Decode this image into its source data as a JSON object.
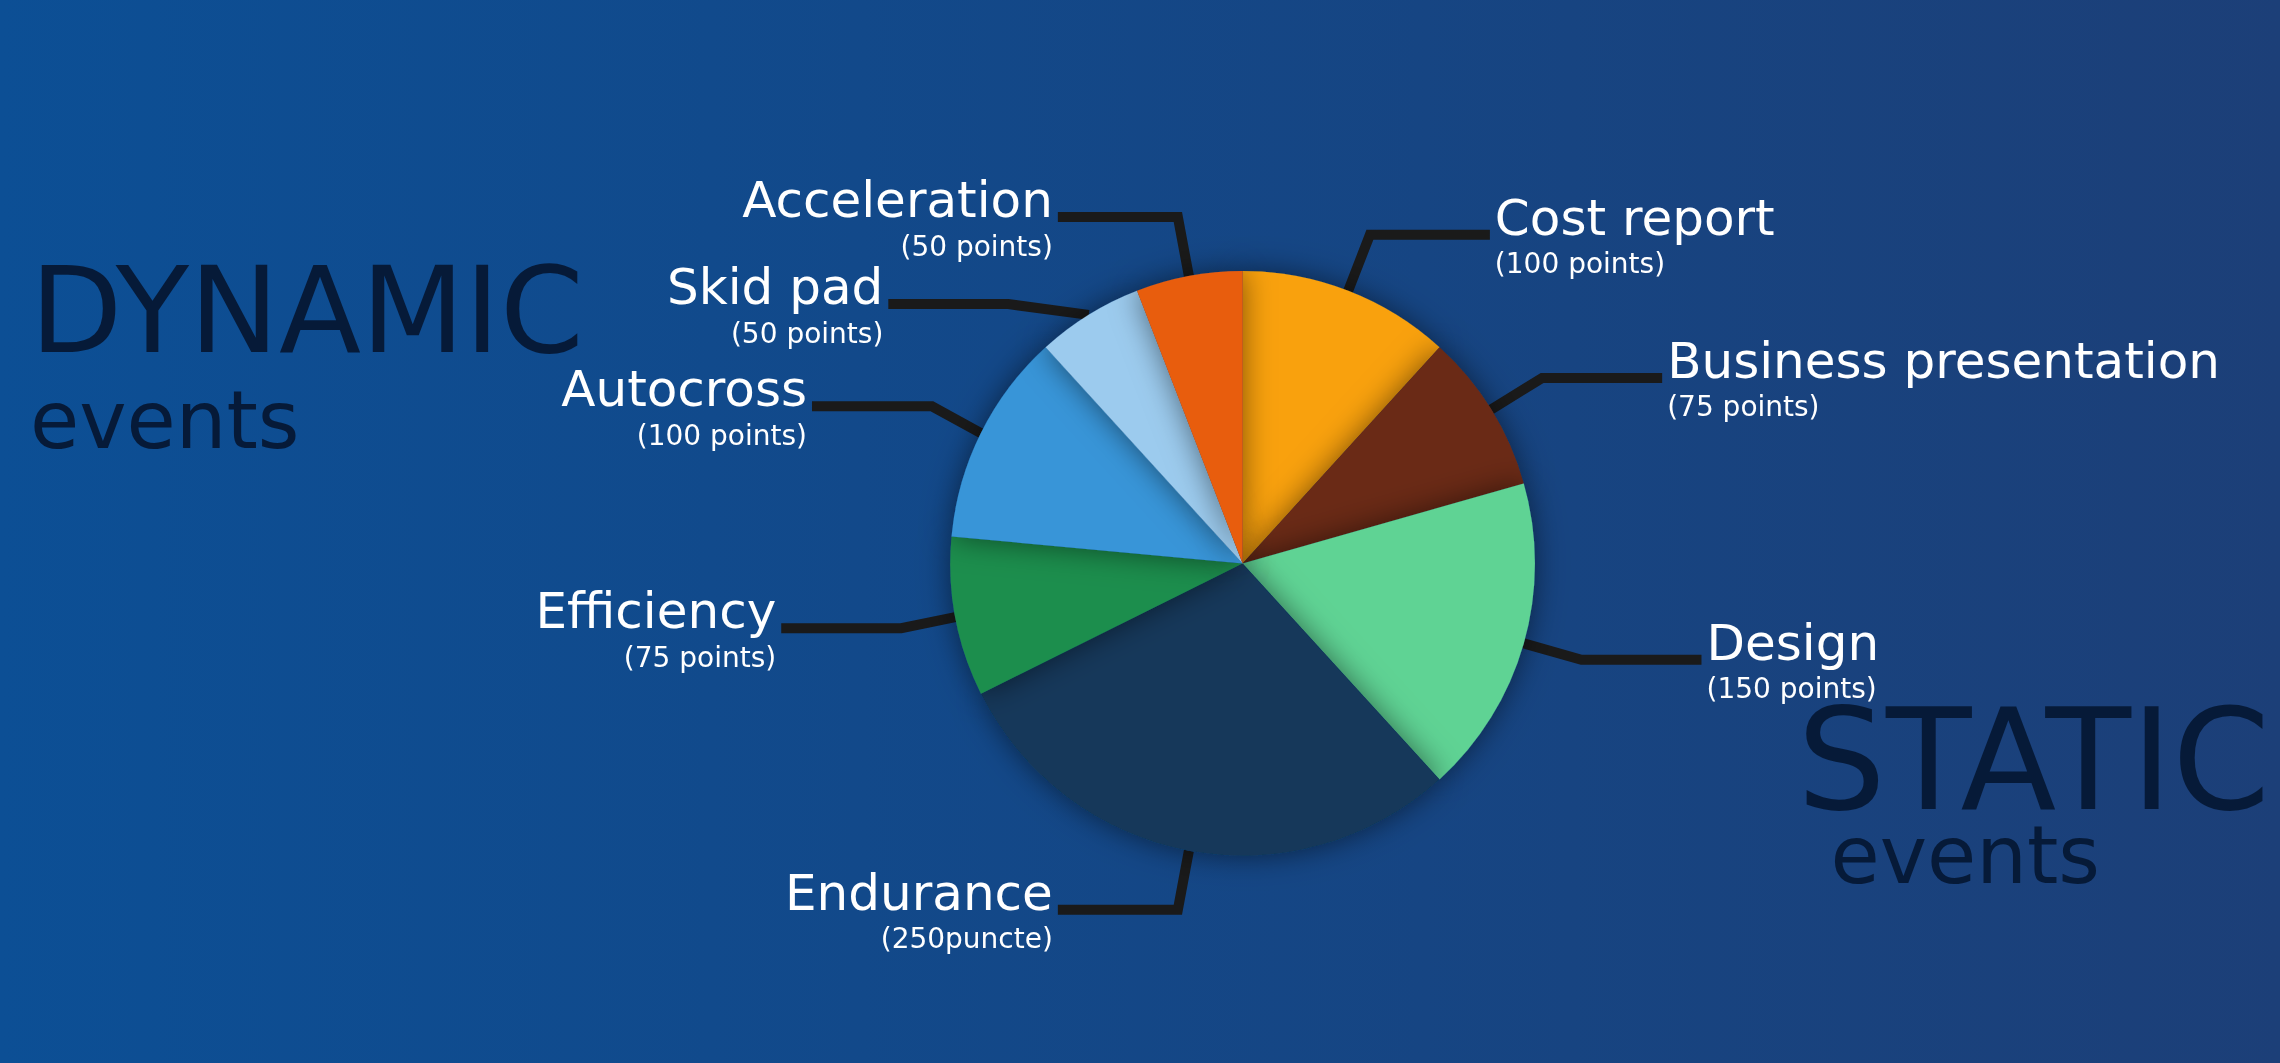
{
  "chart_data": {
    "type": "pie",
    "categories": [
      "Cost report",
      "Business presentation",
      "Design",
      "Endurance",
      "Efficiency",
      "Autocross",
      "Skid pad",
      "Acceleration"
    ],
    "values": [
      100,
      75,
      150,
      250,
      75,
      100,
      50,
      50
    ],
    "value_labels": [
      "(100 points)",
      "(75 points)",
      "(150 points)",
      "(250puncte)",
      "(75 points)",
      "(100 points)",
      "(50 points)",
      "(50 points)"
    ],
    "colors": [
      "#f9a10a",
      "#6b2a14",
      "#5fd394",
      "#12385a",
      "#1e8e4e",
      "#3795d8",
      "#9ccbee",
      "#e85d0c"
    ],
    "annotations": [
      "DYNAMIC",
      "events",
      "STATIC",
      "events"
    ],
    "legend": false
  }
}
